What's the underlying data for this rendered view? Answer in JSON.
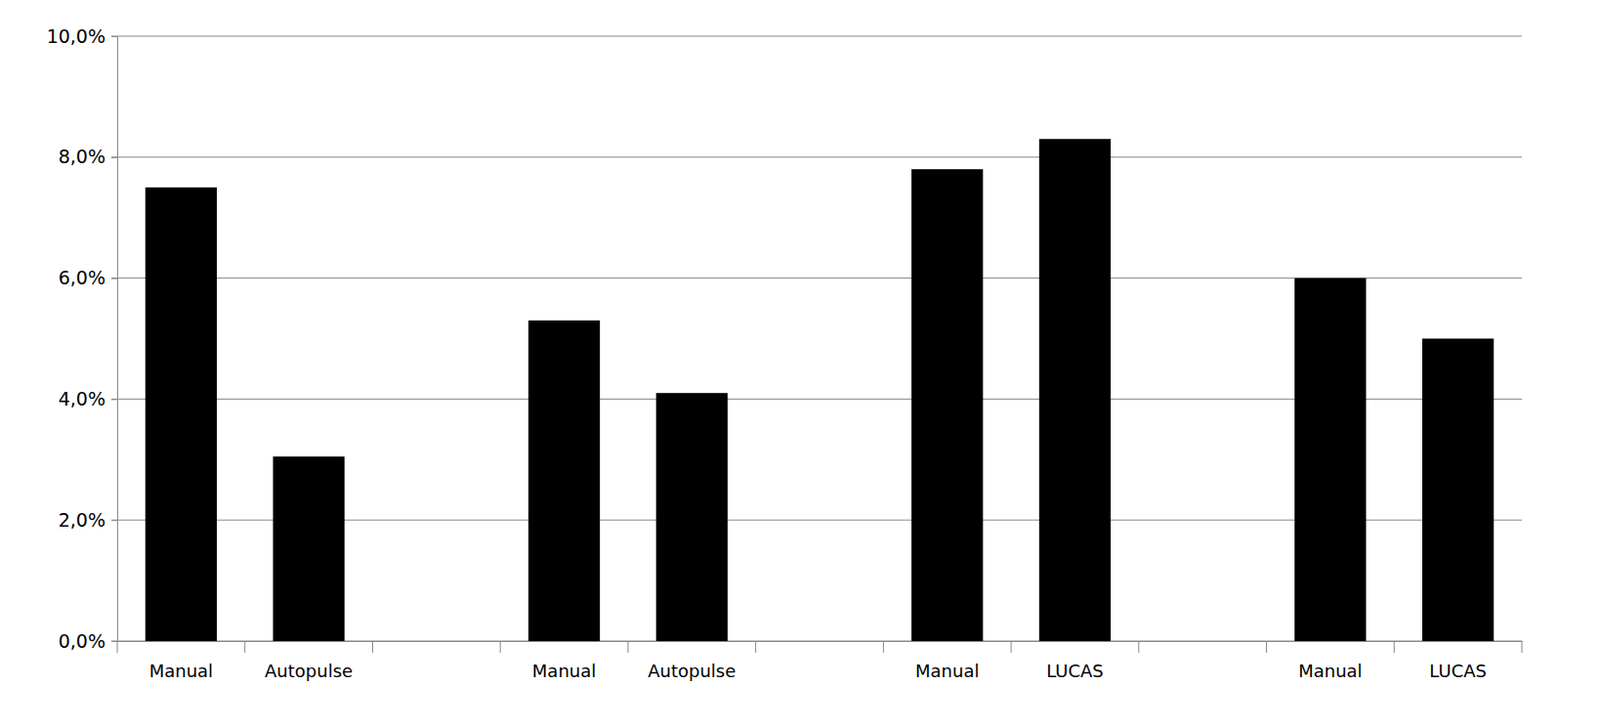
{
  "chart_data": {
    "type": "bar",
    "categories": [
      "Manual",
      "Autopulse",
      null,
      "Manual",
      "Autopulse",
      null,
      "Manual",
      "LUCAS",
      null,
      "Manual",
      "LUCAS"
    ],
    "values": [
      7.5,
      3.05,
      null,
      5.3,
      4.1,
      null,
      7.8,
      8.3,
      null,
      6.0,
      5.0
    ],
    "color": "#000000",
    "ylim": [
      0,
      10
    ],
    "yticks": [
      {
        "value": 0,
        "label": "0,0%"
      },
      {
        "value": 2,
        "label": "2,0%"
      },
      {
        "value": 4,
        "label": "4,0%"
      },
      {
        "value": 6,
        "label": "6,0%"
      },
      {
        "value": 8,
        "label": "8,0%"
      },
      {
        "value": 10,
        "label": "10,0%"
      }
    ],
    "grid": true
  }
}
